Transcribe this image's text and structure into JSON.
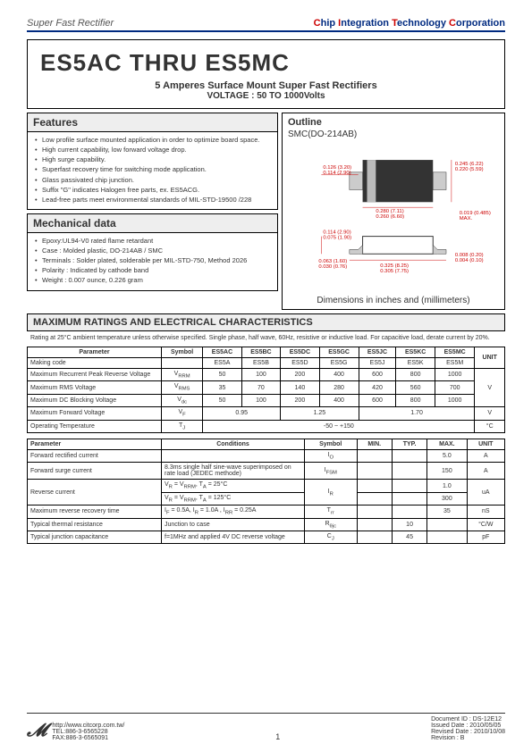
{
  "header": {
    "left": "Super Fast Rectifier",
    "right_plain": "hip ",
    "right_i": "ntegration ",
    "right_t": "echnology ",
    "right_c": "orporation",
    "c1": "C",
    "c2": "I",
    "c3": "T",
    "c4": "C"
  },
  "title": {
    "main": "ES5AC THRU ES5MC",
    "sub1": "5 Amperes Surface Mount Super Fast Rectifiers",
    "sub2": "VOLTAGE : 50 TO 1000Volts"
  },
  "features": {
    "heading": "Features",
    "items": [
      "Low profile surface mounted application in order to optimize board space.",
      "High current capability, low forward voltage drop.",
      "High surge capability.",
      "Superfast recovery time for switching mode application.",
      "Glass passivated chip junction.",
      "Suffix \"G\" indicates Halogen free parts, ex. ES5ACG.",
      "Lead-free parts meet environmental standards of MIL-STD-19500 /228"
    ]
  },
  "mech": {
    "heading": "Mechanical data",
    "items": [
      "Epoxy:UL94-V0 rated flame retardant",
      "Case : Molded plastic,  DO-214AB / SMC",
      "Terminals : Solder plated, solderable per                      MIL-STD-750, Method 2026",
      "Polarity : Indicated by cathode band",
      "Weight : 0.007 ounce,  0.226 gram"
    ]
  },
  "outline": {
    "heading": "Outline",
    "sub": "SMC(DO-214AB)",
    "dims": {
      "d1": "0.126 (3.20)",
      "d1b": "0.114 (2.90)",
      "d2": "0.245 (6.22)",
      "d2b": "0.220 (5.59)",
      "d3": "0.280 (7.11)",
      "d3b": "0.260 (6.60)",
      "d4": "0.019 (0.485)",
      "d4b": "MAX.",
      "d5": "0.114 (2.90)",
      "d5b": "0.075 (1.90)",
      "d6": "0.063 (1.60)",
      "d6b": "0.030 (0.76)",
      "d7": "0.325 (8.25)",
      "d7b": "0.305 (7.75)",
      "d8": "0.008 (0.20)",
      "d8b": "0.004 (0.10)"
    },
    "caption": "Dimensions in inches and (millimeters)"
  },
  "char": {
    "heading": "MAXIMUM RATINGS AND ELECTRICAL CHARACTERISTICS",
    "note": "Rating at 25°C ambient temperature unless otherwise specified. Single phase, half wave, 60Hz, resistive or inductive load. For capacitive load, derate current by 20%."
  },
  "table1": {
    "headers": [
      "Parameter",
      "Symbol",
      "ES5AC",
      "ES5BC",
      "ES5DC",
      "ES5GC",
      "ES5JC",
      "ES5KC",
      "ES5MC",
      "UNIT"
    ],
    "rows": [
      [
        "Making code",
        "",
        "ES5A",
        "ES5B",
        "ES5D",
        "ES5G",
        "ES5J",
        "ES5K",
        "ES5M",
        ""
      ],
      [
        "Maximum Recurrent Peak Reverse Voltage",
        "V<sub>RRM</sub>",
        "50",
        "100",
        "200",
        "400",
        "600",
        "800",
        "1000",
        ""
      ],
      [
        "Maximum RMS Voltage",
        "V<sub>RMS</sub>",
        "35",
        "70",
        "140",
        "280",
        "420",
        "560",
        "700",
        "V"
      ],
      [
        "Maximum DC Blocking Voltage",
        "V<sub>dc</sub>",
        "50",
        "100",
        "200",
        "400",
        "600",
        "800",
        "1000",
        ""
      ],
      [
        "Maximum Forward Voltage",
        "V<sub>F</sub>",
        "0.95",
        "",
        "1.25",
        "",
        "1.70",
        "",
        "",
        "V"
      ],
      [
        "Operating Temperature",
        "T<sub>J</sub>",
        "-50 ~ +150",
        "",
        "",
        "",
        "",
        "",
        "",
        "°C"
      ]
    ]
  },
  "table2": {
    "headers": [
      "Parameter",
      "Conditions",
      "Symbol",
      "MIN.",
      "TYP.",
      "MAX.",
      "UNIT"
    ],
    "rows": [
      [
        "Forward rectified current",
        "",
        "I<sub>O</sub>",
        "",
        "",
        "5.0",
        "A"
      ],
      [
        "Forward surge current",
        "8.3ms single half sine-wave superimposed on rate load (JEDEC methode)",
        "I<sub>FSM</sub>",
        "",
        "",
        "150",
        "A"
      ],
      [
        "Reverse current",
        "V<sub>R</sub> = V<sub>RRM</sub>, T<sub>A</sub> =  25°C",
        "I<sub>R</sub>",
        "",
        "",
        "1.0",
        "uA"
      ],
      [
        "",
        "V<sub>R</sub> = V<sub>RRM</sub>, T<sub>A</sub> =  125°C",
        "",
        "",
        "",
        "300",
        ""
      ],
      [
        "Maximum reverse recovery time",
        "I<sub>F</sub> = 0.5A, I<sub>R</sub> = 1.0A , I<sub>RR</sub> = 0.25A",
        "T<sub>rr</sub>",
        "",
        "",
        "35",
        "nS"
      ],
      [
        "Typical thermal resistance",
        "Junction to case",
        "R<sub>θjc</sub>",
        "",
        "10",
        "",
        "°C/W"
      ],
      [
        "Typical junction capacitance",
        "f=1MHz and applied 4V DC reverse voltage",
        "C<sub>J</sub>",
        "",
        "45",
        "",
        "pF"
      ]
    ]
  },
  "footer": {
    "url": "http://www.citcorp.com.tw/",
    "tel": "TEL:886-3-6565228",
    "fax": "FAX:886-3-6565091",
    "page": "1",
    "doc": "Document ID : DS-12E12",
    "issued": "Issued Date : 2010/05/05",
    "revised": "Revised Date : 2010/10/08",
    "rev": "Revision : B"
  }
}
